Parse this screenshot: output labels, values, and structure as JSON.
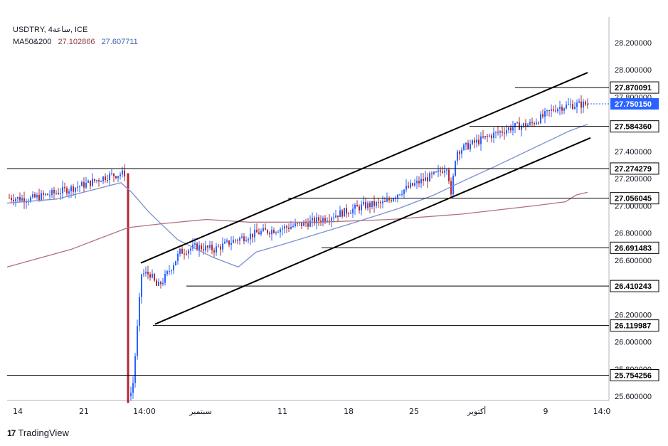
{
  "legend": {
    "symbol_line": "USDTRY, 4ساعة, ICE",
    "ma_label": "MA50&200",
    "ma50_value": "27.102866",
    "ma200_value": "27.607711"
  },
  "brand": {
    "logo": "17",
    "name": "TradingView"
  },
  "colors": {
    "up": "#2962ff",
    "down": "#b22833",
    "ma50": "#7b8fd1",
    "ma200": "#b07080",
    "current_price_bg": "#2962ff"
  },
  "chart_data": {
    "type": "candlestick",
    "symbol": "USDTRY",
    "interval": "4ساعة",
    "ylim": [
      25.55,
      28.4
    ],
    "y_ticks": [
      "28.200000",
      "28.000000",
      "27.800000",
      "27.600000",
      "27.400000",
      "27.200000",
      "27.000000",
      "26.800000",
      "26.600000",
      "26.400000",
      "26.200000",
      "26.000000",
      "25.800000",
      "25.600000"
    ],
    "x_ticks": [
      "14",
      "21",
      "14:00",
      "سبتمبر",
      "11",
      "18",
      "25",
      "أكتوبر",
      "9",
      "14:0"
    ],
    "current_price": "27.750150",
    "horizontal_levels": [
      "27.870091",
      "27.584360",
      "27.274279",
      "27.056045",
      "26.691483",
      "26.410243",
      "26.119987",
      "25.754256"
    ],
    "channel": {
      "upper": {
        "from": 26.58,
        "to": 27.98
      },
      "lower": {
        "from": 26.13,
        "to": 27.5
      }
    }
  }
}
